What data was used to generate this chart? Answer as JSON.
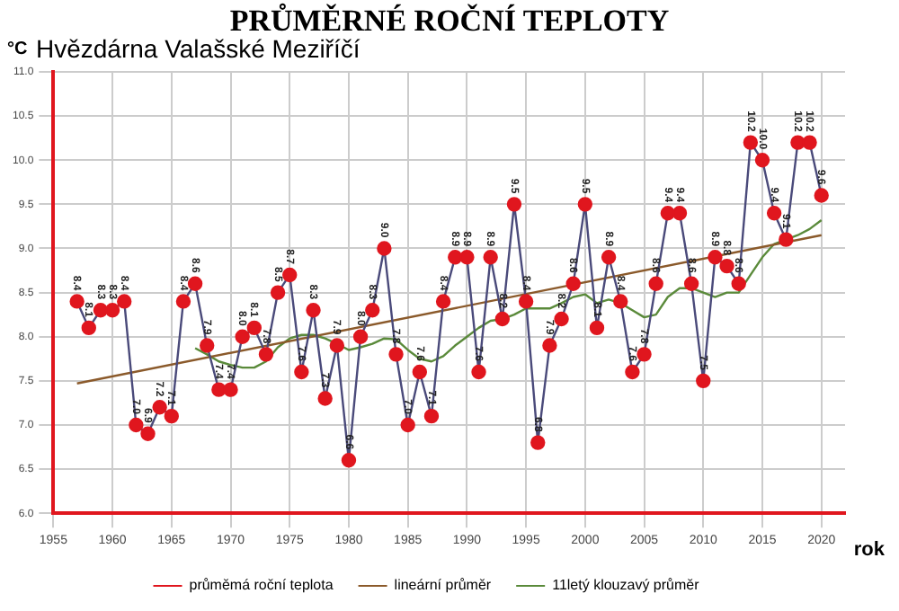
{
  "chart_data": {
    "type": "line",
    "title": "PRŮMĚRNÉ ROČNÍ TEPLOTY",
    "subtitle": "Hvězdárna Valašské Meziříčí",
    "ylabel": "°C",
    "xlabel": "rok",
    "xlim": [
      1955,
      2022
    ],
    "xticks": [
      1955,
      1960,
      1965,
      1970,
      1975,
      1980,
      1985,
      1990,
      1995,
      2000,
      2005,
      2010,
      2015,
      2020
    ],
    "ylim": [
      6,
      11
    ],
    "yticks": [
      {
        "value": 6,
        "label": "6.0"
      },
      {
        "value": 6.5,
        "label": "6.5"
      },
      {
        "value": 7,
        "label": "7.0"
      },
      {
        "value": 7.5,
        "label": "7.5"
      },
      {
        "value": 8,
        "label": "8.0"
      },
      {
        "value": 8.5,
        "label": "8.5"
      },
      {
        "value": 9,
        "label": "9.0"
      },
      {
        "value": 9.5,
        "label": "9.5"
      },
      {
        "value": 10,
        "label": "10.0"
      },
      {
        "value": 10.5,
        "label": "10.5"
      },
      {
        "value": 11,
        "label": "11.0"
      }
    ],
    "grid": true,
    "legend": "bottom",
    "series": [
      {
        "name": "průměmá roční teplota",
        "color": "#e0161e",
        "marker": "circle",
        "x": [
          1957,
          1958,
          1959,
          1960,
          1961,
          1962,
          1963,
          1964,
          1965,
          1966,
          1967,
          1968,
          1969,
          1970,
          1971,
          1972,
          1973,
          1974,
          1975,
          1976,
          1977,
          1978,
          1979,
          1980,
          1981,
          1982,
          1983,
          1984,
          1985,
          1986,
          1987,
          1988,
          1989,
          1990,
          1991,
          1992,
          1993,
          1994,
          1995,
          1996,
          1997,
          1998,
          1999,
          2000,
          2001,
          2002,
          2003,
          2004,
          2005,
          2006,
          2007,
          2008,
          2009,
          2010,
          2011,
          2012,
          2013,
          2014,
          2015,
          2016,
          2017,
          2018,
          2019,
          2020
        ],
        "values": [
          8.4,
          8.1,
          8.3,
          8.3,
          8.4,
          7.0,
          6.9,
          7.2,
          7.1,
          8.4,
          8.6,
          7.9,
          7.4,
          7.4,
          8.0,
          8.1,
          7.8,
          8.5,
          8.7,
          7.6,
          8.3,
          7.3,
          7.9,
          6.6,
          8.0,
          8.3,
          9.0,
          7.8,
          7.0,
          7.6,
          7.1,
          8.4,
          8.9,
          8.9,
          7.6,
          8.9,
          8.2,
          9.5,
          8.4,
          6.8,
          7.9,
          8.2,
          8.6,
          9.5,
          8.1,
          8.9,
          8.4,
          7.6,
          7.8,
          8.6,
          9.4,
          9.4,
          8.6,
          7.5,
          8.9,
          8.8,
          8.6,
          10.2,
          10.0,
          9.4,
          9.1,
          10.2,
          10.2,
          9.6
        ],
        "value_labels": [
          "8.4",
          "8.1",
          "8.3",
          "8.3",
          "8.4",
          "7.0",
          "6.9",
          "7.2",
          "7.1",
          "8.4",
          "8.6",
          "7.9",
          "7.4",
          "7.4",
          "8.0",
          "8.1",
          "7.8",
          "8.5",
          "8.7",
          "7.6",
          "8.3",
          "7.3",
          "7.9",
          "6.6",
          "8.0",
          "8.3",
          "9.0",
          "7.8",
          "7.0",
          "7.6",
          "7.1",
          "8.4",
          "8.9",
          "8.9",
          "7.6",
          "8.9",
          "8.2",
          "9.5",
          "8.4",
          "6.8",
          "7.9",
          "8.2",
          "8.6",
          "9.5",
          "8.1",
          "8.9",
          "8.4",
          "7.6",
          "7.8",
          "8.6",
          "9.4",
          "9.4",
          "8.6",
          "7.5",
          "8.9",
          "8.8",
          "8.6",
          "10.2",
          "10.0",
          "9.4",
          "9.1",
          "10.2",
          "10.2",
          "9.6"
        ]
      },
      {
        "name": "lineární průměr",
        "color": "#8b5a2b",
        "marker": "none",
        "x": [
          1957,
          2020
        ],
        "values": [
          7.47,
          9.15
        ]
      },
      {
        "name": "11letý klouzavý průměr",
        "color": "#5a8a3a",
        "marker": "none",
        "x": [
          1967,
          1968,
          1969,
          1970,
          1971,
          1972,
          1973,
          1974,
          1975,
          1976,
          1977,
          1978,
          1979,
          1980,
          1981,
          1982,
          1983,
          1984,
          1985,
          1986,
          1987,
          1988,
          1989,
          1990,
          1991,
          1992,
          1993,
          1994,
          1995,
          1996,
          1997,
          1998,
          1999,
          2000,
          2001,
          2002,
          2003,
          2004,
          2005,
          2006,
          2007,
          2008,
          2009,
          2010,
          2011,
          2012,
          2013,
          2014,
          2015,
          2016,
          2017,
          2018,
          2019,
          2020
        ],
        "values": [
          7.87,
          7.8,
          7.72,
          7.68,
          7.65,
          7.65,
          7.72,
          7.88,
          7.98,
          8.02,
          8.02,
          7.98,
          7.92,
          7.85,
          7.88,
          7.92,
          7.98,
          7.97,
          7.85,
          7.75,
          7.72,
          7.78,
          7.9,
          8.0,
          8.1,
          8.18,
          8.2,
          8.25,
          8.32,
          8.32,
          8.32,
          8.38,
          8.45,
          8.48,
          8.38,
          8.42,
          8.38,
          8.3,
          8.22,
          8.25,
          8.45,
          8.55,
          8.55,
          8.5,
          8.45,
          8.5,
          8.5,
          8.7,
          8.9,
          9.05,
          9.1,
          9.15,
          9.22,
          9.32
        ]
      }
    ]
  }
}
